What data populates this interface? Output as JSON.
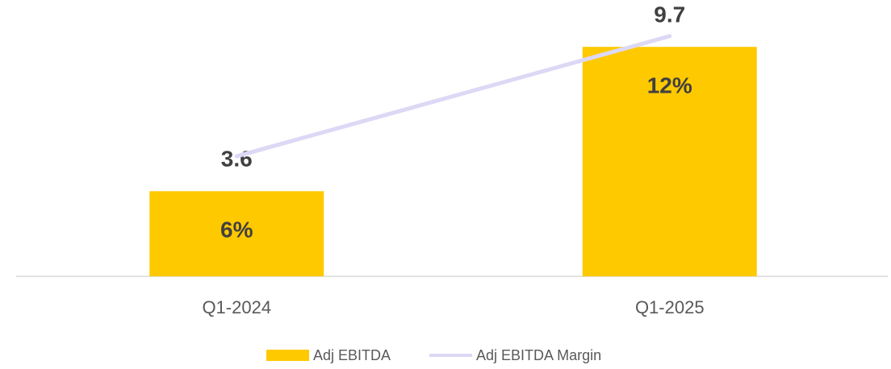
{
  "chart_data": {
    "type": "bar",
    "categories": [
      "Q1-2024",
      "Q1-2025"
    ],
    "series": [
      {
        "name": "Adj EBITDA",
        "type": "bar",
        "color": "#ffc900",
        "values": [
          3.6,
          9.7
        ]
      },
      {
        "name": "Adj EBITDA Margin",
        "type": "line",
        "axis": "y2",
        "color": "#dcd8f5",
        "values": [
          6,
          12
        ],
        "value_labels": [
          "6%",
          "12%"
        ]
      }
    ],
    "ylim": [
      0,
      11
    ],
    "y2lim": [
      0,
      13
    ],
    "legend": "bottom"
  }
}
